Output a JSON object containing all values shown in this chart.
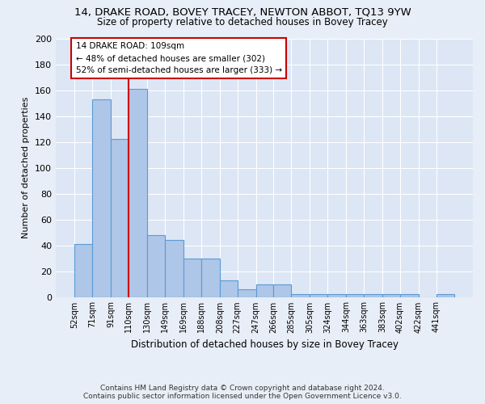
{
  "title": "14, DRAKE ROAD, BOVEY TRACEY, NEWTON ABBOT, TQ13 9YW",
  "subtitle": "Size of property relative to detached houses in Bovey Tracey",
  "xlabel": "Distribution of detached houses by size in Bovey Tracey",
  "ylabel": "Number of detached properties",
  "footer_line1": "Contains HM Land Registry data © Crown copyright and database right 2024.",
  "footer_line2": "Contains public sector information licensed under the Open Government Licence v3.0.",
  "annotation_title": "14 DRAKE ROAD: 109sqm",
  "annotation_line1": "← 48% of detached houses are smaller (302)",
  "annotation_line2": "52% of semi-detached houses are larger (333) →",
  "bar_edges": [
    52,
    71,
    91,
    110,
    130,
    149,
    169,
    188,
    208,
    227,
    247,
    266,
    285,
    305,
    324,
    344,
    363,
    383,
    402,
    422,
    441
  ],
  "bar_heights": [
    41,
    153,
    122,
    161,
    48,
    44,
    30,
    30,
    13,
    6,
    10,
    10,
    2,
    2,
    2,
    2,
    2,
    2,
    2,
    0,
    2
  ],
  "bar_color": "#aec6e8",
  "bar_edge_color": "#5b9bd5",
  "red_line_x": 110,
  "red_line_color": "#cc0000",
  "annotation_box_color": "#cc0000",
  "background_color": "#e8eef7",
  "plot_bg_color": "#dce6f5",
  "grid_color": "#ffffff",
  "ylim": [
    0,
    200
  ],
  "yticks": [
    0,
    20,
    40,
    60,
    80,
    100,
    120,
    140,
    160,
    180,
    200
  ]
}
